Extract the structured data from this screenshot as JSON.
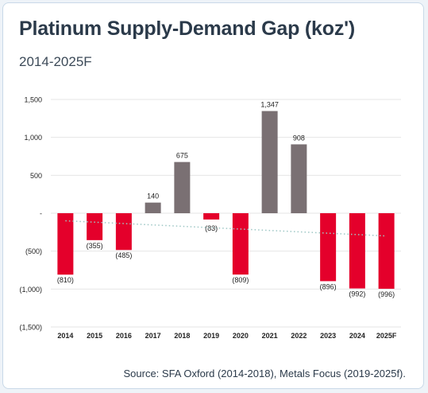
{
  "header": {
    "title": "Platinum Supply-Demand Gap (koz')",
    "subtitle": "2014-2025F"
  },
  "footer": {
    "source": "Source: SFA Oxford (2014-2018), Metals Focus (2019-2025f)."
  },
  "colors": {
    "negative": "#e4002b",
    "positive": "#7a7073",
    "trend": "#9ec7c5",
    "grid": "#e6e6e6",
    "card_border": "#c9d9e8"
  },
  "chart_data": {
    "type": "bar",
    "title": "",
    "xlabel": "",
    "ylabel": "",
    "categories": [
      "2014",
      "2015",
      "2016",
      "2017",
      "2018",
      "2019",
      "2020",
      "2021",
      "2022",
      "2023",
      "2024",
      "2025F"
    ],
    "values": [
      -810,
      -355,
      -485,
      140,
      675,
      -83,
      -809,
      1347,
      908,
      -896,
      -992,
      -996
    ],
    "data_labels": [
      "(810)",
      "(355)",
      "(485)",
      "140",
      "675",
      "(83)",
      "(809)",
      "1,347",
      "908",
      "(896)",
      "(992)",
      "(996)"
    ],
    "ylim": [
      -1500,
      1500
    ],
    "yticks": [
      1500,
      1000,
      500,
      0,
      -500,
      -1000,
      -1500
    ],
    "ytick_labels": [
      "1,500",
      "1,000",
      "500",
      "-",
      "(500)",
      "(1,000)",
      "(1,500)"
    ],
    "trendline": {
      "style": "dotted linear",
      "start": -100,
      "end": -300
    },
    "grid": true,
    "legend": "none"
  }
}
